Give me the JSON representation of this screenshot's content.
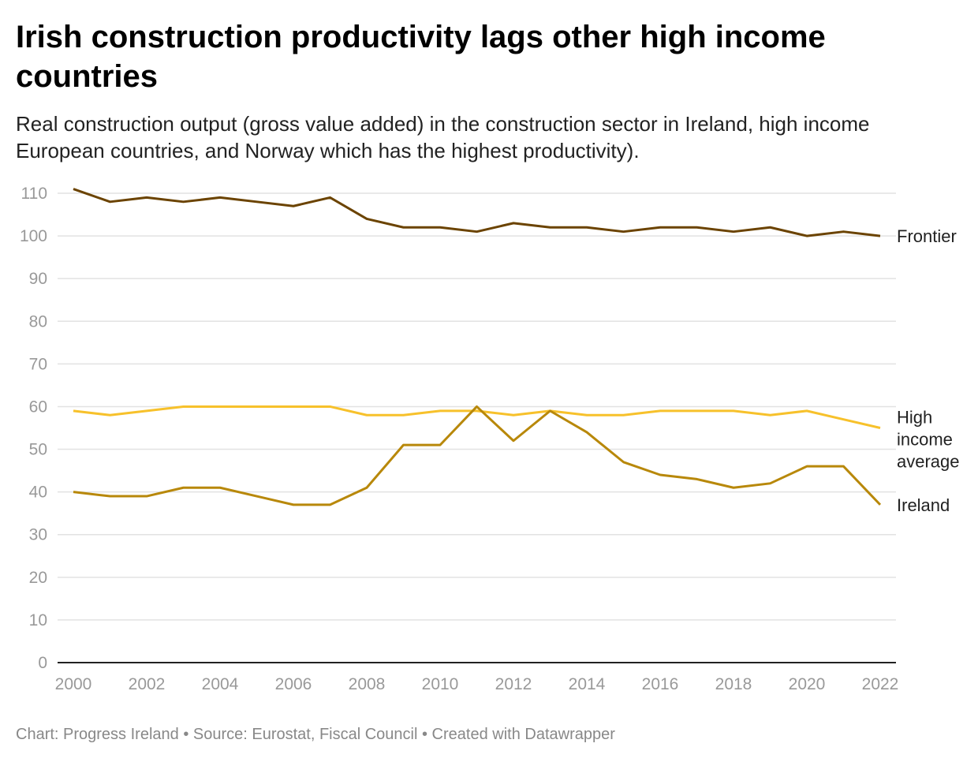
{
  "header": {
    "title": "Irish construction productivity lags other high income countries",
    "subtitle": "Real construction output (gross value added) in the construction sector in Ireland, high income European countries, and Norway which has the highest productivity)."
  },
  "footer": {
    "text": "Chart: Progress Ireland • Source: Eurostat, Fiscal Council • Created with Datawrapper"
  },
  "chart_data": {
    "type": "line",
    "title": "Irish construction productivity lags other high income countries",
    "xlabel": "",
    "ylabel": "",
    "ylim": [
      0,
      110
    ],
    "xlim": [
      2000,
      2022
    ],
    "grid": true,
    "yticks": [
      0,
      10,
      20,
      30,
      40,
      50,
      60,
      70,
      80,
      90,
      100,
      110
    ],
    "xticks": [
      2000,
      2002,
      2004,
      2006,
      2008,
      2010,
      2012,
      2014,
      2016,
      2018,
      2020,
      2022
    ],
    "x": [
      2000,
      2001,
      2002,
      2003,
      2004,
      2005,
      2006,
      2007,
      2008,
      2009,
      2010,
      2011,
      2012,
      2013,
      2014,
      2015,
      2016,
      2017,
      2018,
      2019,
      2020,
      2021,
      2022
    ],
    "series": [
      {
        "name": "Frontier",
        "label_lines": [
          "Frontier"
        ],
        "color": "#6b4300",
        "values": [
          111,
          108,
          109,
          108,
          109,
          108,
          107,
          109,
          104,
          102,
          102,
          101,
          103,
          102,
          102,
          101,
          102,
          102,
          101,
          102,
          100,
          101,
          100
        ]
      },
      {
        "name": "High income average",
        "label_lines": [
          "High",
          "income",
          "average"
        ],
        "color": "#f7c12b",
        "values": [
          59,
          58,
          59,
          60,
          60,
          60,
          60,
          60,
          58,
          58,
          59,
          59,
          58,
          59,
          58,
          58,
          59,
          59,
          59,
          58,
          59,
          57,
          55
        ]
      },
      {
        "name": "Ireland",
        "label_lines": [
          "Ireland"
        ],
        "color": "#b8880a",
        "values": [
          40,
          39,
          39,
          41,
          41,
          39,
          37,
          37,
          41,
          51,
          51,
          60,
          52,
          59,
          54,
          47,
          44,
          43,
          41,
          42,
          46,
          46,
          37
        ]
      }
    ]
  }
}
